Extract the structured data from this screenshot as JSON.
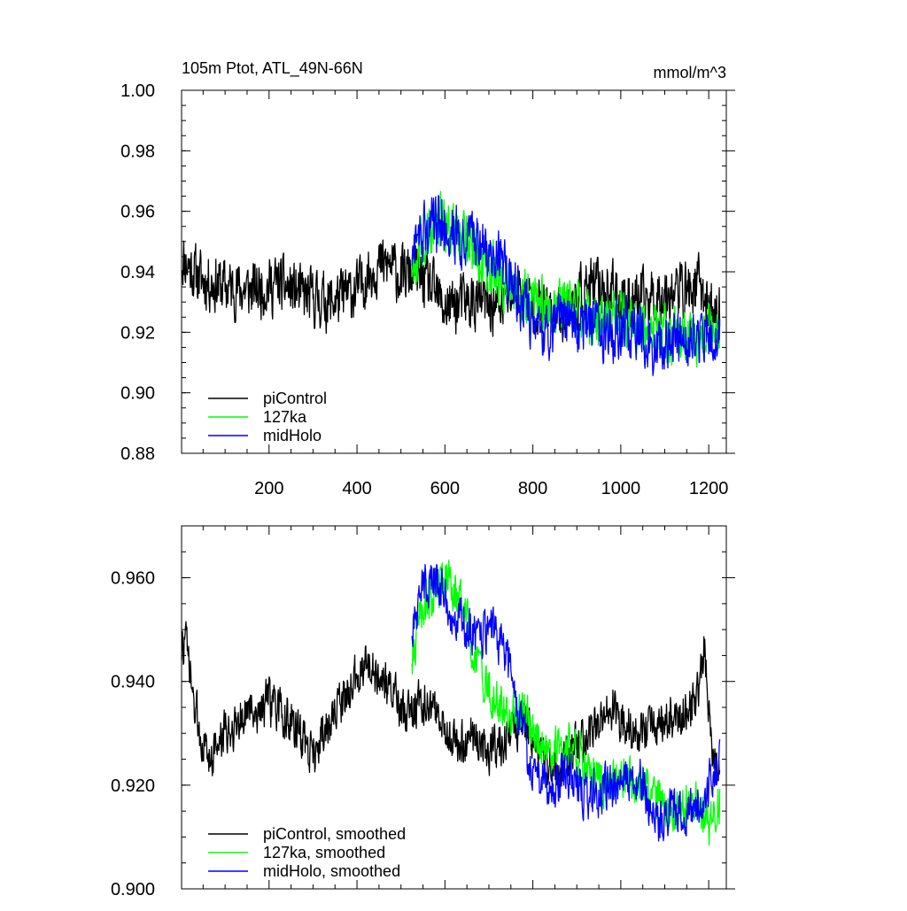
{
  "chart_data": [
    {
      "type": "line",
      "title": "105m Ptot, ATL_49N-66N",
      "units": "mmol/m^3",
      "xlabel": "",
      "ylabel": "",
      "xlim": [
        1,
        1240
      ],
      "ylim": [
        0.88,
        1.0
      ],
      "x_ticks": [
        200,
        400,
        600,
        800,
        1000,
        1200
      ],
      "x_tick_labels": [
        "200",
        "400",
        "600",
        "800",
        "1000",
        "1200"
      ],
      "y_ticks": [
        0.88,
        0.9,
        0.92,
        0.94,
        0.96,
        0.98,
        1.0
      ],
      "y_tick_labels": [
        "0.88",
        "0.90",
        "0.92",
        "0.94",
        "0.96",
        "0.98",
        "1.00"
      ],
      "legend_position": "bottom-left",
      "series": [
        {
          "name": "piControl",
          "color": "#000000",
          "x_range": [
            1,
            1225
          ],
          "anchors": [
            [
              1,
              0.945
            ],
            [
              40,
              0.938
            ],
            [
              100,
              0.935
            ],
            [
              160,
              0.934
            ],
            [
              220,
              0.936
            ],
            [
              280,
              0.932
            ],
            [
              340,
              0.93
            ],
            [
              400,
              0.934
            ],
            [
              440,
              0.942
            ],
            [
              480,
              0.942
            ],
            [
              500,
              0.938
            ],
            [
              530,
              0.94
            ],
            [
              560,
              0.936
            ],
            [
              600,
              0.928
            ],
            [
              640,
              0.93
            ],
            [
              680,
              0.93
            ],
            [
              720,
              0.928
            ],
            [
              760,
              0.934
            ],
            [
              800,
              0.93
            ],
            [
              840,
              0.925
            ],
            [
              880,
              0.928
            ],
            [
              920,
              0.934
            ],
            [
              960,
              0.935
            ],
            [
              1000,
              0.932
            ],
            [
              1040,
              0.93
            ],
            [
              1080,
              0.932
            ],
            [
              1120,
              0.934
            ],
            [
              1160,
              0.934
            ],
            [
              1180,
              0.936
            ],
            [
              1200,
              0.928
            ],
            [
              1225,
              0.926
            ]
          ],
          "noise_amplitude": 0.013
        },
        {
          "name": "127ka",
          "color": "#00ff00",
          "x_range": [
            525,
            1225
          ],
          "anchors": [
            [
              525,
              0.942
            ],
            [
              560,
              0.952
            ],
            [
              600,
              0.957
            ],
            [
              640,
              0.952
            ],
            [
              680,
              0.944
            ],
            [
              720,
              0.938
            ],
            [
              760,
              0.933
            ],
            [
              800,
              0.93
            ],
            [
              840,
              0.928
            ],
            [
              880,
              0.93
            ],
            [
              920,
              0.926
            ],
            [
              960,
              0.922
            ],
            [
              1000,
              0.925
            ],
            [
              1040,
              0.922
            ],
            [
              1080,
              0.92
            ],
            [
              1120,
              0.918
            ],
            [
              1160,
              0.918
            ],
            [
              1200,
              0.92
            ],
            [
              1225,
              0.918
            ]
          ],
          "noise_amplitude": 0.013
        },
        {
          "name": "midHolo",
          "color": "#0000ff",
          "x_range": [
            525,
            1225
          ],
          "anchors": [
            [
              525,
              0.945
            ],
            [
              560,
              0.955
            ],
            [
              600,
              0.956
            ],
            [
              640,
              0.952
            ],
            [
              680,
              0.948
            ],
            [
              720,
              0.946
            ],
            [
              760,
              0.934
            ],
            [
              800,
              0.924
            ],
            [
              840,
              0.921
            ],
            [
              880,
              0.923
            ],
            [
              920,
              0.922
            ],
            [
              960,
              0.921
            ],
            [
              1000,
              0.92
            ],
            [
              1040,
              0.922
            ],
            [
              1080,
              0.915
            ],
            [
              1120,
              0.918
            ],
            [
              1160,
              0.918
            ],
            [
              1200,
              0.92
            ],
            [
              1225,
              0.922
            ]
          ],
          "noise_amplitude": 0.013
        }
      ]
    },
    {
      "type": "line",
      "title": "",
      "xlabel": "",
      "ylabel": "",
      "xlim": [
        1,
        1240
      ],
      "ylim": [
        0.9,
        0.97
      ],
      "x_ticks": [
        200,
        400,
        600,
        800,
        1000,
        1200
      ],
      "y_ticks": [
        0.9,
        0.92,
        0.94,
        0.96
      ],
      "y_tick_labels": [
        "0.900",
        "0.920",
        "0.940",
        "0.960"
      ],
      "legend_position": "bottom-left",
      "series": [
        {
          "name": "piControl, smoothed",
          "color": "#000000",
          "x_range": [
            1,
            1225
          ],
          "anchors": [
            [
              1,
              0.946
            ],
            [
              10,
              0.948
            ],
            [
              30,
              0.935
            ],
            [
              60,
              0.925
            ],
            [
              100,
              0.93
            ],
            [
              150,
              0.934
            ],
            [
              200,
              0.936
            ],
            [
              250,
              0.932
            ],
            [
              300,
              0.926
            ],
            [
              340,
              0.932
            ],
            [
              380,
              0.938
            ],
            [
              420,
              0.944
            ],
            [
              450,
              0.94
            ],
            [
              480,
              0.938
            ],
            [
              510,
              0.933
            ],
            [
              540,
              0.936
            ],
            [
              580,
              0.934
            ],
            [
              620,
              0.928
            ],
            [
              660,
              0.93
            ],
            [
              700,
              0.927
            ],
            [
              740,
              0.929
            ],
            [
              780,
              0.933
            ],
            [
              820,
              0.926
            ],
            [
              860,
              0.922
            ],
            [
              900,
              0.928
            ],
            [
              940,
              0.931
            ],
            [
              980,
              0.935
            ],
            [
              1020,
              0.931
            ],
            [
              1060,
              0.93
            ],
            [
              1100,
              0.933
            ],
            [
              1140,
              0.933
            ],
            [
              1170,
              0.936
            ],
            [
              1190,
              0.946
            ],
            [
              1210,
              0.926
            ],
            [
              1225,
              0.925
            ]
          ],
          "noise_amplitude": 0.006
        },
        {
          "name": "127ka, smoothed",
          "color": "#00ff00",
          "x_range": [
            525,
            1225
          ],
          "anchors": [
            [
              525,
              0.945
            ],
            [
              550,
              0.955
            ],
            [
              580,
              0.958
            ],
            [
              610,
              0.96
            ],
            [
              640,
              0.954
            ],
            [
              670,
              0.945
            ],
            [
              700,
              0.938
            ],
            [
              740,
              0.933
            ],
            [
              780,
              0.935
            ],
            [
              800,
              0.93
            ],
            [
              840,
              0.926
            ],
            [
              880,
              0.928
            ],
            [
              920,
              0.924
            ],
            [
              960,
              0.92
            ],
            [
              1000,
              0.922
            ],
            [
              1040,
              0.92
            ],
            [
              1080,
              0.918
            ],
            [
              1120,
              0.914
            ],
            [
              1160,
              0.918
            ],
            [
              1200,
              0.912
            ],
            [
              1225,
              0.917
            ]
          ],
          "noise_amplitude": 0.006
        },
        {
          "name": "midHolo, smoothed",
          "color": "#0000ff",
          "x_range": [
            525,
            1225
          ],
          "anchors": [
            [
              525,
              0.95
            ],
            [
              550,
              0.958
            ],
            [
              580,
              0.96
            ],
            [
              610,
              0.955
            ],
            [
              640,
              0.952
            ],
            [
              680,
              0.948
            ],
            [
              710,
              0.95
            ],
            [
              740,
              0.945
            ],
            [
              770,
              0.932
            ],
            [
              800,
              0.922
            ],
            [
              840,
              0.92
            ],
            [
              880,
              0.922
            ],
            [
              920,
              0.918
            ],
            [
              960,
              0.919
            ],
            [
              1000,
              0.92
            ],
            [
              1040,
              0.922
            ],
            [
              1080,
              0.912
            ],
            [
              1120,
              0.916
            ],
            [
              1160,
              0.915
            ],
            [
              1200,
              0.92
            ],
            [
              1225,
              0.924
            ]
          ],
          "noise_amplitude": 0.006
        }
      ]
    }
  ]
}
